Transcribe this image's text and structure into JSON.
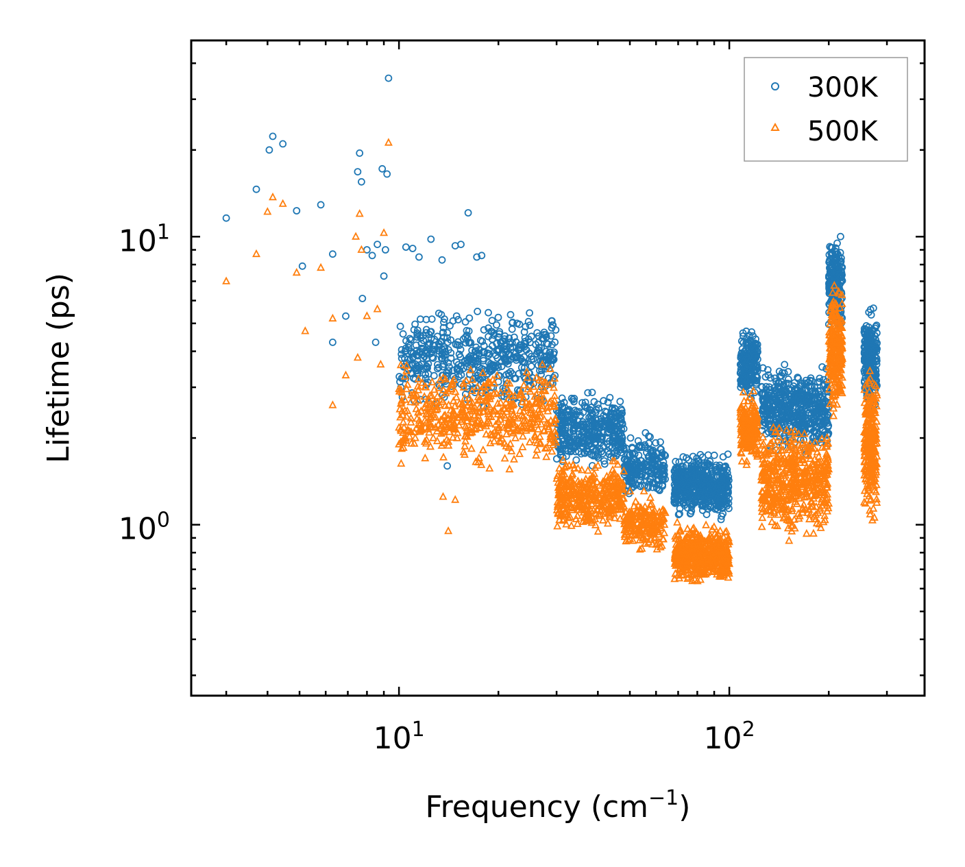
{
  "chart_data": {
    "type": "scatter",
    "title": "",
    "xlabel": "Frequency (cm",
    "xlabel_sup": "−1",
    "xlabel_tail": ")",
    "ylabel": "Lifetime (ps)",
    "xscale": "log",
    "yscale": "log",
    "xlim": [
      2.35,
      390
    ],
    "ylim": [
      0.255,
      48
    ],
    "xticks": [
      {
        "value": 10,
        "base": "10",
        "exp": "1"
      },
      {
        "value": 100,
        "base": "10",
        "exp": "2"
      }
    ],
    "yticks": [
      {
        "value": 1,
        "base": "10",
        "exp": "0"
      },
      {
        "value": 10,
        "base": "10",
        "exp": "1"
      }
    ],
    "legend_position": "top-right",
    "series": [
      {
        "name": "300K",
        "marker": "circle",
        "color": "#1f77b4",
        "points": [
          [
            3.0,
            11.6
          ],
          [
            3.7,
            14.6
          ],
          [
            4.05,
            20.0
          ],
          [
            4.15,
            22.3
          ],
          [
            4.45,
            21.0
          ],
          [
            4.9,
            12.3
          ],
          [
            5.1,
            7.9
          ],
          [
            5.8,
            12.9
          ],
          [
            6.3,
            8.7
          ],
          [
            6.3,
            4.3
          ],
          [
            6.9,
            5.3
          ],
          [
            7.5,
            16.8
          ],
          [
            7.6,
            19.5
          ],
          [
            7.7,
            15.5
          ],
          [
            7.75,
            6.1
          ],
          [
            8.0,
            9.0
          ],
          [
            8.3,
            8.6
          ],
          [
            8.5,
            4.3
          ],
          [
            8.6,
            9.4
          ],
          [
            8.9,
            17.2
          ],
          [
            9.0,
            7.3
          ],
          [
            9.1,
            9.0
          ],
          [
            9.2,
            16.5
          ],
          [
            9.3,
            35.5
          ],
          [
            10.5,
            9.2
          ],
          [
            11.0,
            9.1
          ],
          [
            11.5,
            8.5
          ],
          [
            12.5,
            9.8
          ],
          [
            13.5,
            8.3
          ],
          [
            14.8,
            9.3
          ],
          [
            15.4,
            9.4
          ],
          [
            16.2,
            12.1
          ],
          [
            17.2,
            8.5
          ],
          [
            17.8,
            8.6
          ],
          [
            14.0,
            1.6
          ],
          [
            11.2,
            3.2
          ]
        ],
        "clusters": [
          {
            "x": [
              10,
              30
            ],
            "y_log": [
              0.38,
              0.78
            ],
            "n": 520
          },
          {
            "x": [
              30,
              48
            ],
            "y_log": [
              0.16,
              0.48
            ],
            "n": 380
          },
          {
            "x": [
              48,
              64
            ],
            "y_log": [
              0.07,
              0.34
            ],
            "n": 200
          },
          {
            "x": [
              68,
              100
            ],
            "y_log": [
              0.0,
              0.27
            ],
            "n": 500
          },
          {
            "x": [
              108,
              122
            ],
            "y_log": [
              0.42,
              0.71
            ],
            "n": 200
          },
          {
            "x": [
              125,
              200
            ],
            "y_log": [
              0.22,
              0.58
            ],
            "n": 520
          },
          {
            "x": [
              200,
              220
            ],
            "y_log": [
              0.62,
              1.04
            ],
            "n": 230
          },
          {
            "x": [
              256,
              280
            ],
            "y_log": [
              0.35,
              0.78
            ],
            "n": 240
          }
        ]
      },
      {
        "name": "500K",
        "marker": "triangle",
        "color": "#ff7f0e",
        "points": [
          [
            3.0,
            7.0
          ],
          [
            3.7,
            8.7
          ],
          [
            4.0,
            12.2
          ],
          [
            4.15,
            13.7
          ],
          [
            4.45,
            13.0
          ],
          [
            4.9,
            7.5
          ],
          [
            5.2,
            4.7
          ],
          [
            5.8,
            7.8
          ],
          [
            6.3,
            5.2
          ],
          [
            6.3,
            2.6
          ],
          [
            6.9,
            3.3
          ],
          [
            7.4,
            10.0
          ],
          [
            7.5,
            3.8
          ],
          [
            7.6,
            12.0
          ],
          [
            7.7,
            9.0
          ],
          [
            8.0,
            5.3
          ],
          [
            8.6,
            5.6
          ],
          [
            8.8,
            3.6
          ],
          [
            9.0,
            10.3
          ],
          [
            9.3,
            21.2
          ],
          [
            10.0,
            1.9
          ],
          [
            11.2,
            2.0
          ],
          [
            13.6,
            1.25
          ],
          [
            14.1,
            0.95
          ],
          [
            14.8,
            1.22
          ],
          [
            12.0,
            1.7
          ]
        ],
        "clusters": [
          {
            "x": [
              10,
              30
            ],
            "y_log": [
              0.18,
              0.58
            ],
            "n": 520
          },
          {
            "x": [
              30,
              48
            ],
            "y_log": [
              -0.05,
              0.25
            ],
            "n": 380
          },
          {
            "x": [
              48,
              64
            ],
            "y_log": [
              -0.12,
              0.12
            ],
            "n": 200
          },
          {
            "x": [
              68,
              100
            ],
            "y_log": [
              -0.22,
              0.02
            ],
            "n": 500
          },
          {
            "x": [
              108,
              122
            ],
            "y_log": [
              0.18,
              0.48
            ],
            "n": 200
          },
          {
            "x": [
              125,
              200
            ],
            "y_log": [
              -0.08,
              0.38
            ],
            "n": 520
          },
          {
            "x": [
              200,
              220
            ],
            "y_log": [
              0.36,
              0.86
            ],
            "n": 230
          },
          {
            "x": [
              256,
              280
            ],
            "y_log": [
              -0.05,
              0.62
            ],
            "n": 240
          }
        ]
      }
    ]
  }
}
